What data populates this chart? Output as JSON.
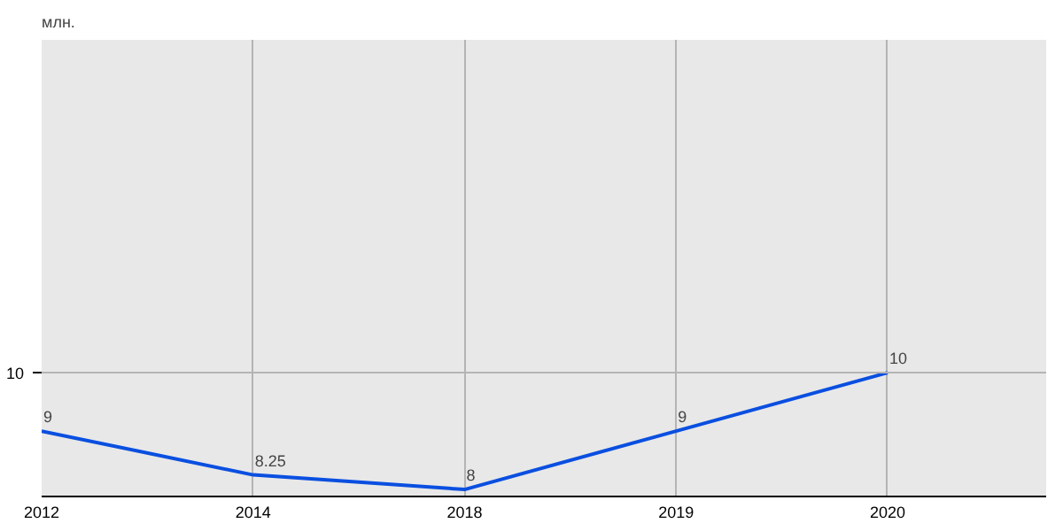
{
  "chart_data": {
    "type": "line",
    "categories": [
      "2012",
      "2014",
      "2018",
      "2019",
      "2020"
    ],
    "series": [
      {
        "color": "#0a4fe0",
        "values": [
          9,
          8.25,
          8,
          9,
          10
        ]
      }
    ],
    "annotations": [
      "млн."
    ],
    "ref_lines": [
      {
        "axis": "y",
        "value": 10,
        "label": "10"
      }
    ],
    "grid": true,
    "data_labels": true,
    "marker": "none",
    "line_style": "solid"
  }
}
